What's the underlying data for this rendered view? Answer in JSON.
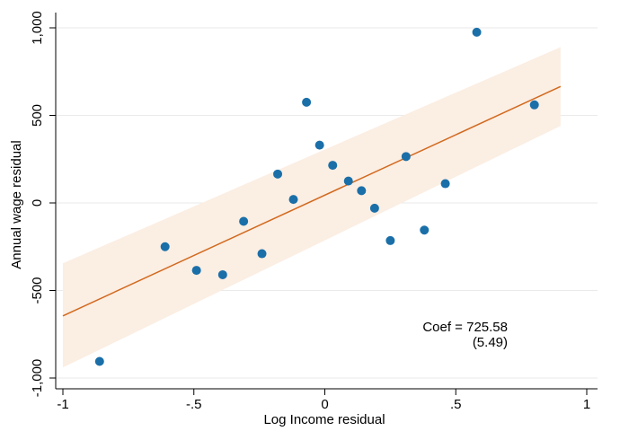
{
  "chart_data": {
    "type": "scatter",
    "xlabel": "Log Income residual",
    "ylabel": "Annual wage residual",
    "xlim": [
      -1,
      1
    ],
    "ylim": [
      -1000,
      1000
    ],
    "x_ticks": [
      -1,
      -0.5,
      0,
      0.5,
      1
    ],
    "x_tick_labels": [
      "-1",
      "-.5",
      "0",
      ".5",
      "1"
    ],
    "y_ticks": [
      -1000,
      -500,
      0,
      500,
      1000
    ],
    "y_tick_labels": [
      "-1,000",
      "-500",
      "0",
      "500",
      "1,000"
    ],
    "grid": "horizontal",
    "points": [
      {
        "x": -0.86,
        "y": -905
      },
      {
        "x": -0.61,
        "y": -250
      },
      {
        "x": -0.49,
        "y": -385
      },
      {
        "x": -0.39,
        "y": -410
      },
      {
        "x": -0.31,
        "y": -105
      },
      {
        "x": -0.24,
        "y": -290
      },
      {
        "x": -0.18,
        "y": 165
      },
      {
        "x": -0.12,
        "y": 20
      },
      {
        "x": -0.07,
        "y": 575
      },
      {
        "x": -0.02,
        "y": 330
      },
      {
        "x": 0.03,
        "y": 215
      },
      {
        "x": 0.09,
        "y": 125
      },
      {
        "x": 0.14,
        "y": 70
      },
      {
        "x": 0.19,
        "y": -30
      },
      {
        "x": 0.25,
        "y": -215
      },
      {
        "x": 0.31,
        "y": 265
      },
      {
        "x": 0.38,
        "y": -155
      },
      {
        "x": 0.46,
        "y": 110
      },
      {
        "x": 0.58,
        "y": 975
      },
      {
        "x": 0.8,
        "y": 560
      }
    ],
    "fit_line": {
      "x": [
        -1,
        0.9
      ],
      "y": [
        -645,
        665
      ]
    },
    "confidence_band": {
      "x": [
        -1,
        0.9
      ],
      "upper": [
        -345,
        890
      ],
      "lower": [
        -940,
        440
      ]
    },
    "annotation": {
      "line1": "Coef = 725.58",
      "line2": "(5.49)"
    },
    "colors": {
      "points": "#1a6fa8",
      "fit_line": "#d2691e",
      "band": "#fbeee3",
      "grid": "#eaeaea",
      "axis": "#000000"
    }
  }
}
